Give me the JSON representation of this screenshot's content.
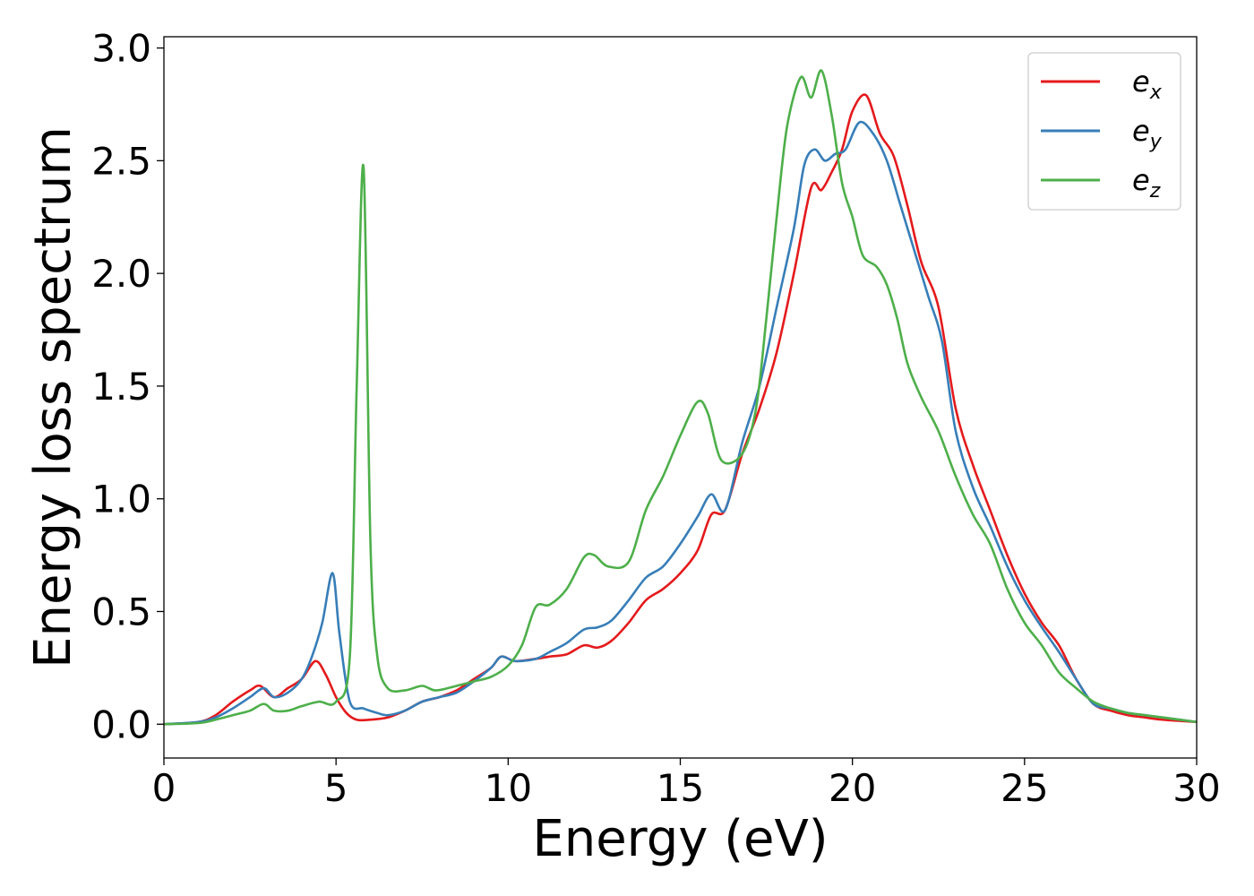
{
  "chart_data": {
    "type": "line",
    "title": "",
    "xlabel": "Energy (eV)",
    "ylabel": "Energy loss spectrum",
    "xlim": [
      0,
      30
    ],
    "ylim": [
      -0.15,
      3.05
    ],
    "xticks": [
      0,
      5,
      10,
      15,
      20,
      25,
      30
    ],
    "xtick_labels": [
      "0",
      "5",
      "10",
      "15",
      "20",
      "25",
      "30"
    ],
    "yticks": [
      0.0,
      0.5,
      1.0,
      1.5,
      2.0,
      2.5,
      3.0
    ],
    "ytick_labels": [
      "0.0",
      "0.5",
      "1.0",
      "1.5",
      "2.0",
      "2.5",
      "3.0"
    ],
    "grid": false,
    "legend_position": "top-right",
    "series": [
      {
        "name": "e",
        "subscript": "x",
        "color": "#e41a1c",
        "x": [
          0,
          1,
          1.5,
          2,
          2.5,
          2.8,
          3.2,
          3.6,
          4.0,
          4.4,
          4.7,
          5.0,
          5.3,
          5.6,
          6.0,
          6.5,
          7.0,
          7.5,
          8.0,
          8.5,
          9.0,
          9.5,
          9.8,
          10.2,
          10.8,
          11.2,
          11.7,
          12.2,
          12.6,
          13.0,
          13.5,
          14.0,
          14.5,
          15.0,
          15.5,
          15.9,
          16.3,
          16.8,
          17.3,
          17.8,
          18.3,
          18.8,
          19.1,
          19.4,
          19.7,
          20.0,
          20.4,
          20.8,
          21.2,
          21.6,
          22.0,
          22.5,
          23.0,
          23.5,
          24.0,
          24.5,
          25.0,
          25.5,
          26.0,
          26.5,
          27.0,
          27.5,
          28.0,
          28.5,
          29.0,
          30.0
        ],
        "y": [
          0.0,
          0.01,
          0.04,
          0.1,
          0.15,
          0.17,
          0.12,
          0.16,
          0.2,
          0.28,
          0.22,
          0.12,
          0.05,
          0.02,
          0.02,
          0.03,
          0.06,
          0.1,
          0.12,
          0.15,
          0.2,
          0.25,
          0.3,
          0.28,
          0.29,
          0.3,
          0.31,
          0.35,
          0.34,
          0.37,
          0.45,
          0.55,
          0.6,
          0.67,
          0.77,
          0.93,
          0.95,
          1.2,
          1.4,
          1.65,
          2.0,
          2.38,
          2.37,
          2.45,
          2.55,
          2.72,
          2.79,
          2.62,
          2.52,
          2.3,
          2.05,
          1.85,
          1.4,
          1.15,
          0.95,
          0.75,
          0.58,
          0.45,
          0.35,
          0.2,
          0.09,
          0.06,
          0.04,
          0.03,
          0.02,
          0.01
        ]
      },
      {
        "name": "e",
        "subscript": "y",
        "color": "#377eb8",
        "x": [
          0,
          1,
          1.5,
          2,
          2.5,
          2.9,
          3.2,
          3.6,
          4.0,
          4.3,
          4.6,
          4.9,
          5.1,
          5.4,
          5.8,
          6.2,
          6.5,
          7.0,
          7.5,
          8.0,
          8.5,
          9.0,
          9.5,
          9.8,
          10.2,
          10.8,
          11.2,
          11.7,
          12.2,
          12.6,
          13.0,
          13.5,
          14.0,
          14.5,
          15.0,
          15.5,
          15.9,
          16.3,
          16.8,
          17.3,
          17.8,
          18.3,
          18.6,
          18.9,
          19.2,
          19.5,
          19.8,
          20.2,
          20.6,
          21.0,
          21.4,
          21.8,
          22.2,
          22.6,
          23.0,
          23.5,
          24.0,
          24.5,
          25.0,
          25.5,
          26.0,
          26.5,
          27.0,
          27.5,
          28.0,
          28.5,
          29.0,
          30.0
        ],
        "y": [
          0.0,
          0.01,
          0.03,
          0.07,
          0.12,
          0.16,
          0.12,
          0.14,
          0.2,
          0.3,
          0.45,
          0.67,
          0.4,
          0.1,
          0.07,
          0.05,
          0.04,
          0.06,
          0.1,
          0.12,
          0.14,
          0.19,
          0.25,
          0.3,
          0.28,
          0.29,
          0.32,
          0.36,
          0.42,
          0.43,
          0.46,
          0.55,
          0.65,
          0.7,
          0.8,
          0.92,
          1.02,
          0.95,
          1.25,
          1.5,
          1.85,
          2.2,
          2.48,
          2.55,
          2.5,
          2.53,
          2.55,
          2.67,
          2.62,
          2.5,
          2.3,
          2.1,
          1.9,
          1.7,
          1.3,
          1.05,
          0.88,
          0.7,
          0.55,
          0.43,
          0.32,
          0.2,
          0.09,
          0.07,
          0.05,
          0.04,
          0.03,
          0.01
        ]
      },
      {
        "name": "e",
        "subscript": "z",
        "color": "#4daf4a",
        "x": [
          0,
          1,
          1.5,
          2,
          2.5,
          2.9,
          3.2,
          3.6,
          4.0,
          4.5,
          5.0,
          5.4,
          5.6,
          5.8,
          6.0,
          6.2,
          6.5,
          7.0,
          7.5,
          7.9,
          8.5,
          9.0,
          9.5,
          10.0,
          10.4,
          10.8,
          11.2,
          11.7,
          12.2,
          12.5,
          12.9,
          13.5,
          14.0,
          14.5,
          15.0,
          15.5,
          15.8,
          16.2,
          16.8,
          17.2,
          17.5,
          17.8,
          18.1,
          18.5,
          18.8,
          19.1,
          19.4,
          19.7,
          20.0,
          20.3,
          20.7,
          21.0,
          21.3,
          21.6,
          22.0,
          22.5,
          23.0,
          23.5,
          24.0,
          24.5,
          25.0,
          25.5,
          26.0,
          26.5,
          27.0,
          27.5,
          28.0,
          28.5,
          29.0,
          30.0
        ],
        "y": [
          0.0,
          0.005,
          0.02,
          0.04,
          0.06,
          0.09,
          0.06,
          0.06,
          0.08,
          0.1,
          0.1,
          0.3,
          1.5,
          2.47,
          0.8,
          0.3,
          0.16,
          0.15,
          0.17,
          0.15,
          0.17,
          0.19,
          0.21,
          0.26,
          0.35,
          0.52,
          0.53,
          0.6,
          0.74,
          0.75,
          0.7,
          0.72,
          0.95,
          1.1,
          1.28,
          1.43,
          1.38,
          1.17,
          1.2,
          1.4,
          1.8,
          2.25,
          2.65,
          2.87,
          2.78,
          2.9,
          2.7,
          2.4,
          2.25,
          2.08,
          2.03,
          1.95,
          1.8,
          1.6,
          1.45,
          1.3,
          1.1,
          0.93,
          0.8,
          0.6,
          0.45,
          0.35,
          0.23,
          0.16,
          0.1,
          0.07,
          0.05,
          0.04,
          0.03,
          0.01
        ]
      }
    ]
  }
}
